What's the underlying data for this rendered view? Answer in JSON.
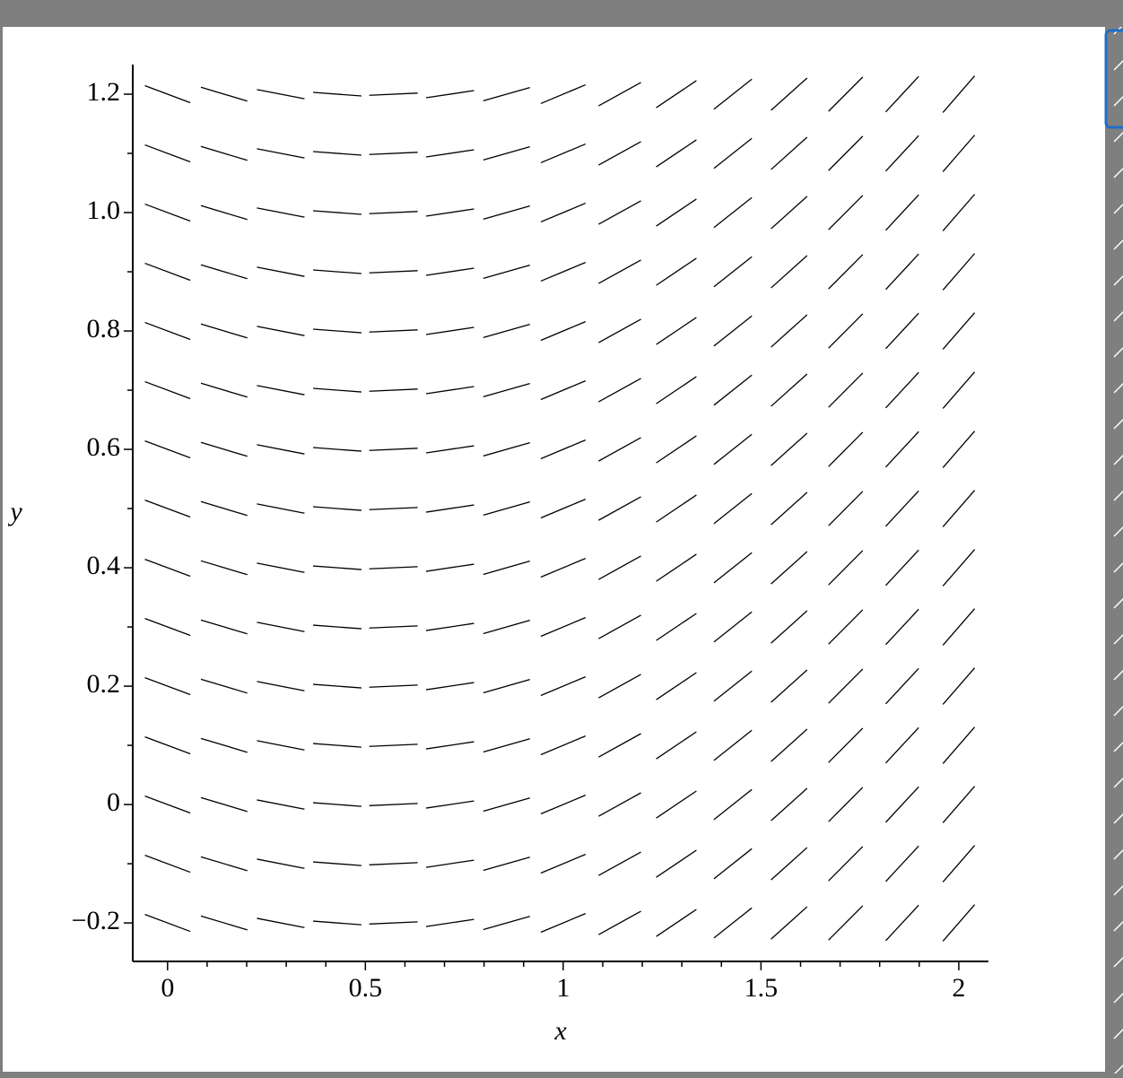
{
  "chart_data": {
    "type": "direction-field",
    "xlabel": "x",
    "ylabel": "y",
    "x": [
      0,
      0.143,
      0.286,
      0.429,
      0.571,
      0.714,
      0.857,
      1,
      1.143,
      1.286,
      1.429,
      1.571,
      1.714,
      1.857,
      2
    ],
    "y": [
      -0.2,
      -0.1,
      0,
      0.1,
      0.2,
      0.3,
      0.4,
      0.5,
      0.6,
      0.7,
      0.8,
      0.9,
      1.0,
      1.1,
      1.2
    ],
    "slopes": [
      -0.25,
      -0.2,
      -0.13,
      -0.05,
      0.03,
      0.1,
      0.19,
      0.28,
      0.37,
      0.45,
      0.53,
      0.6,
      0.67,
      0.72,
      0.77
    ],
    "color": "#000000",
    "xlim": [
      -0.088,
      2.075
    ],
    "ylim": [
      -0.265,
      1.25
    ],
    "xticks": [
      0,
      0.5,
      1,
      1.5,
      2
    ],
    "xminorticks": [
      0.1,
      0.2,
      0.3,
      0.4,
      0.6,
      0.7,
      0.8,
      0.9,
      1.1,
      1.2,
      1.3,
      1.4,
      1.6,
      1.7,
      1.8,
      1.9
    ],
    "yticks": [
      {
        "value": -0.2,
        "label": "−0.2"
      },
      0,
      0.2,
      0.4,
      0.6,
      0.8,
      {
        "value": 1,
        "label": "1.0"
      },
      1.2
    ],
    "yminorticks": [
      -0.1,
      0.1,
      0.3,
      0.5,
      0.7,
      0.9,
      1.1
    ]
  }
}
